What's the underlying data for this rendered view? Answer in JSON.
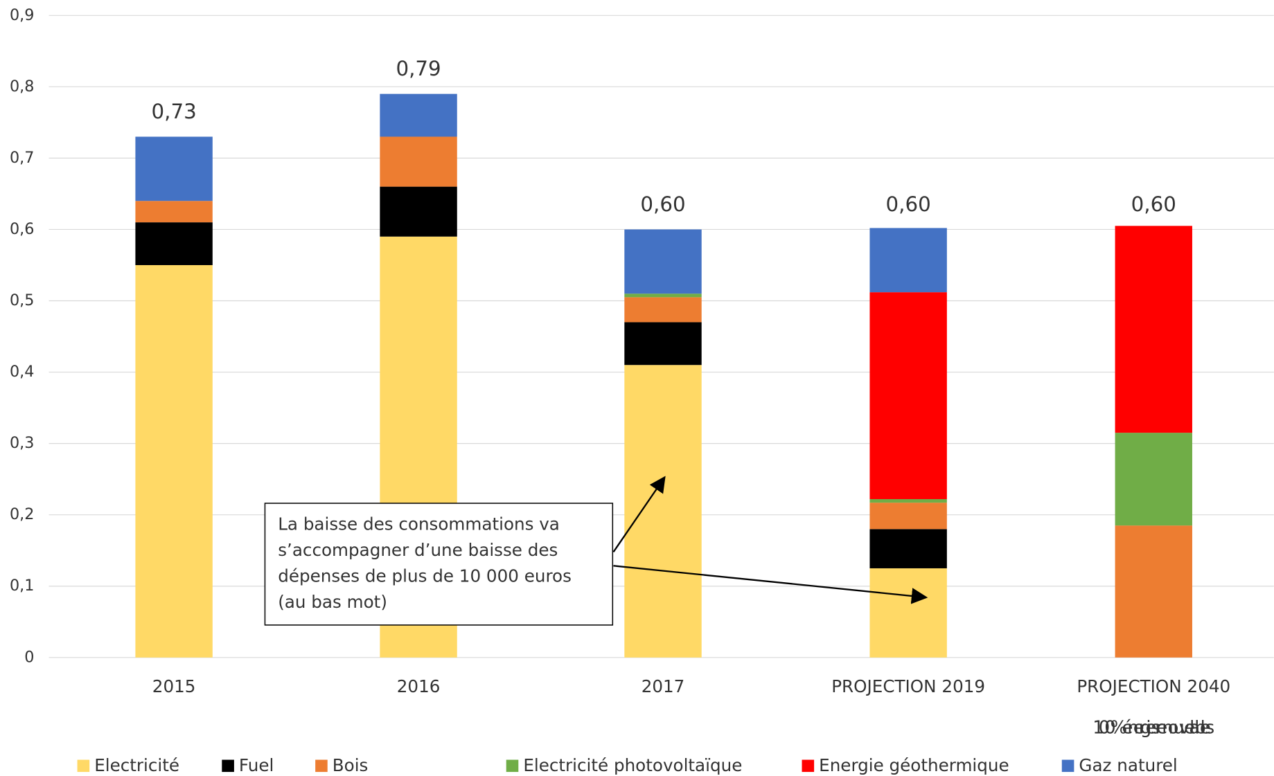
{
  "chart_data": {
    "type": "stacked_bar",
    "categories": [
      "2015",
      "2016",
      "2017",
      "PROJECTION 2019",
      "PROJECTION 2040"
    ],
    "category_note": "100% énergies renouvelables",
    "series": [
      {
        "name": "Electricité",
        "color": "#FFD966",
        "values": [
          0.55,
          0.59,
          0.41,
          0.125,
          0
        ]
      },
      {
        "name": "Fuel",
        "color": "#000000",
        "values": [
          0.06,
          0.07,
          0.06,
          0.055,
          0
        ]
      },
      {
        "name": "Bois",
        "color": "#ED7D31",
        "values": [
          0.03,
          0.07,
          0.035,
          0.037,
          0.185
        ]
      },
      {
        "name": "Electricité photovoltaïque",
        "color": "#70AD47",
        "values": [
          0,
          0,
          0.005,
          0.005,
          0.13
        ]
      },
      {
        "name": "Energie géothermique",
        "color": "#FF0000",
        "values": [
          0,
          0,
          0,
          0.29,
          0.29
        ]
      },
      {
        "name": "Gaz naturel",
        "color": "#4472C4",
        "values": [
          0.09,
          0.06,
          0.09,
          0.09,
          0
        ]
      }
    ],
    "totals": [
      0.73,
      0.79,
      0.6,
      0.6,
      0.6
    ],
    "value_labels": [
      "0,73",
      "0,79",
      "0,60",
      "0,60",
      "0,60"
    ],
    "ylim": [
      0,
      0.9
    ],
    "yticks": [
      0,
      {
        "value": 0.1,
        "label": "0,1"
      },
      {
        "value": 0.2,
        "label": "0,2"
      },
      {
        "value": 0.3,
        "label": "0,3"
      },
      {
        "value": 0.4,
        "label": "0,4"
      },
      {
        "value": 0.5,
        "label": "0,5"
      },
      {
        "value": 0.6,
        "label": "0,6"
      },
      {
        "value": 0.7,
        "label": "0,7"
      },
      {
        "value": 0.8,
        "label": "0,8"
      },
      {
        "value": 0.9,
        "label": "0,9"
      }
    ],
    "grid": true,
    "legend": "bottom",
    "annotation": {
      "lines": [
        "La baisse des consommations va",
        "s’accompagner d’une baisse des",
        "dépenses de plus de 10 000 euros",
        "(au bas mot)"
      ]
    }
  }
}
